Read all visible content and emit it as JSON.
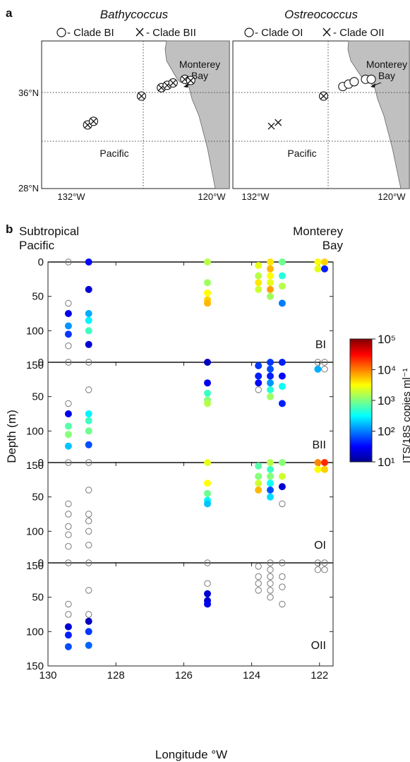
{
  "panel_a": {
    "label": "a",
    "grid_labels": {
      "lat_mid": "36°N",
      "lat_low": "28°N",
      "lon_west": "132°W",
      "lon_east": "120°W"
    },
    "maps": [
      {
        "title": "Bathycoccus",
        "legend": [
          {
            "symbol": "circle",
            "text": "- Clade BI"
          },
          {
            "symbol": "cross",
            "text": "- Clade BII"
          }
        ],
        "land_label_1": "Monterey",
        "land_label_2": "Bay",
        "ocean_label": "Pacific",
        "stations": [
          {
            "lon": -130.6,
            "lat": 33.3,
            "circle": true,
            "cross": true
          },
          {
            "lon": -130.1,
            "lat": 33.6,
            "circle": true,
            "cross": true
          },
          {
            "lon": -126.0,
            "lat": 35.7,
            "circle": true,
            "cross": true
          },
          {
            "lon": -124.3,
            "lat": 36.4,
            "circle": true,
            "cross": true
          },
          {
            "lon": -123.8,
            "lat": 36.6,
            "circle": true,
            "cross": true
          },
          {
            "lon": -123.3,
            "lat": 36.8,
            "circle": true,
            "cross": true
          },
          {
            "lon": -122.3,
            "lat": 37.1,
            "circle": true,
            "cross": true
          },
          {
            "lon": -121.8,
            "lat": 37.0,
            "circle": true,
            "cross": true
          }
        ]
      },
      {
        "title": "Ostreococcus",
        "legend": [
          {
            "symbol": "circle",
            "text": "- Clade OI"
          },
          {
            "symbol": "cross",
            "text": "- Clade OII"
          }
        ],
        "land_label_1": "Monterey",
        "land_label_2": "Bay",
        "ocean_label": "Pacific",
        "stations": [
          {
            "lon": -130.6,
            "lat": 33.2,
            "circle": false,
            "cross": true
          },
          {
            "lon": -130.0,
            "lat": 33.5,
            "circle": false,
            "cross": true
          },
          {
            "lon": -126.0,
            "lat": 35.7,
            "circle": true,
            "cross": true
          },
          {
            "lon": -124.3,
            "lat": 36.5,
            "circle": true,
            "cross": false
          },
          {
            "lon": -123.8,
            "lat": 36.7,
            "circle": true,
            "cross": false
          },
          {
            "lon": -123.3,
            "lat": 36.9,
            "circle": true,
            "cross": false
          },
          {
            "lon": -122.3,
            "lat": 37.1,
            "circle": true,
            "cross": false
          },
          {
            "lon": -121.8,
            "lat": 37.1,
            "circle": true,
            "cross": false
          }
        ]
      }
    ]
  },
  "panel_b": {
    "label": "b",
    "left_heading_1": "Subtropical",
    "left_heading_2": "Pacific",
    "right_heading_1": "Monterey",
    "right_heading_2": "Bay",
    "colorbar_label": "ITS/18S copies ml⁻¹"
  },
  "chart_data": {
    "type": "scatter",
    "xlabel": "Longitude °W",
    "ylabel": "Depth (m)",
    "xlim": [
      130,
      121.6
    ],
    "ylim": [
      150,
      0
    ],
    "xticks": [
      130,
      128,
      126,
      124,
      122
    ],
    "yticks": [
      0,
      50,
      100,
      150
    ],
    "color_scale": {
      "type": "log10",
      "min_exp": 1,
      "max_exp": 5,
      "tick_labels": [
        "10⁵",
        "10⁴",
        "10³",
        "10²",
        "10¹"
      ]
    },
    "panels": [
      {
        "name": "BI",
        "points": [
          {
            "x": 129.4,
            "y": 0,
            "v": null
          },
          {
            "x": 129.4,
            "y": 60,
            "v": null
          },
          {
            "x": 129.4,
            "y": 75,
            "v": 1.2
          },
          {
            "x": 129.4,
            "y": 93,
            "v": 1.9
          },
          {
            "x": 129.4,
            "y": 105,
            "v": 1.5
          },
          {
            "x": 129.4,
            "y": 122,
            "v": null
          },
          {
            "x": 128.8,
            "y": 0,
            "v": 1.3
          },
          {
            "x": 128.8,
            "y": 40,
            "v": 1.1
          },
          {
            "x": 128.8,
            "y": 75,
            "v": 2.0
          },
          {
            "x": 128.8,
            "y": 85,
            "v": 2.3
          },
          {
            "x": 128.8,
            "y": 100,
            "v": 2.6
          },
          {
            "x": 128.8,
            "y": 120,
            "v": 1.1
          },
          {
            "x": 125.3,
            "y": 0,
            "v": 3.1
          },
          {
            "x": 125.3,
            "y": 30,
            "v": 3.0
          },
          {
            "x": 125.3,
            "y": 45,
            "v": 3.4
          },
          {
            "x": 125.3,
            "y": 55,
            "v": 3.6
          },
          {
            "x": 125.3,
            "y": 60,
            "v": 3.7
          },
          {
            "x": 123.8,
            "y": 5,
            "v": 3.3
          },
          {
            "x": 123.8,
            "y": 20,
            "v": 3.1
          },
          {
            "x": 123.8,
            "y": 30,
            "v": 3.5
          },
          {
            "x": 123.8,
            "y": 40,
            "v": 3.2
          },
          {
            "x": 123.45,
            "y": 0,
            "v": 3.5
          },
          {
            "x": 123.45,
            "y": 10,
            "v": 3.7
          },
          {
            "x": 123.45,
            "y": 20,
            "v": 3.4
          },
          {
            "x": 123.45,
            "y": 30,
            "v": 3.3
          },
          {
            "x": 123.45,
            "y": 40,
            "v": 3.8
          },
          {
            "x": 123.45,
            "y": 50,
            "v": 3.0
          },
          {
            "x": 123.1,
            "y": 0,
            "v": 2.8
          },
          {
            "x": 123.1,
            "y": 20,
            "v": 2.5
          },
          {
            "x": 123.1,
            "y": 35,
            "v": 3.1
          },
          {
            "x": 123.1,
            "y": 60,
            "v": 1.8
          },
          {
            "x": 122.05,
            "y": 0,
            "v": 3.4
          },
          {
            "x": 122.05,
            "y": 10,
            "v": 3.3
          },
          {
            "x": 121.85,
            "y": 0,
            "v": 3.6
          },
          {
            "x": 121.85,
            "y": 10,
            "v": 1.4
          }
        ]
      },
      {
        "name": "BII",
        "points": [
          {
            "x": 129.4,
            "y": 0,
            "v": null
          },
          {
            "x": 129.4,
            "y": 60,
            "v": null
          },
          {
            "x": 129.4,
            "y": 75,
            "v": 1.2
          },
          {
            "x": 129.4,
            "y": 93,
            "v": 2.7
          },
          {
            "x": 129.4,
            "y": 105,
            "v": 2.9
          },
          {
            "x": 129.4,
            "y": 122,
            "v": 2.1
          },
          {
            "x": 128.8,
            "y": 0,
            "v": null
          },
          {
            "x": 128.8,
            "y": 40,
            "v": null
          },
          {
            "x": 128.8,
            "y": 75,
            "v": 2.3
          },
          {
            "x": 128.8,
            "y": 85,
            "v": 2.6
          },
          {
            "x": 128.8,
            "y": 100,
            "v": 2.8
          },
          {
            "x": 128.8,
            "y": 120,
            "v": 1.6
          },
          {
            "x": 125.3,
            "y": 0,
            "v": 1.0
          },
          {
            "x": 125.3,
            "y": 30,
            "v": 1.2
          },
          {
            "x": 125.3,
            "y": 45,
            "v": 2.6
          },
          {
            "x": 125.3,
            "y": 55,
            "v": 2.9
          },
          {
            "x": 125.3,
            "y": 60,
            "v": 3.1
          },
          {
            "x": 123.8,
            "y": 5,
            "v": 1.5
          },
          {
            "x": 123.8,
            "y": 20,
            "v": 1.4
          },
          {
            "x": 123.8,
            "y": 30,
            "v": 1.3
          },
          {
            "x": 123.8,
            "y": 40,
            "v": null
          },
          {
            "x": 123.45,
            "y": 0,
            "v": 1.5
          },
          {
            "x": 123.45,
            "y": 10,
            "v": 1.6
          },
          {
            "x": 123.45,
            "y": 20,
            "v": 1.4
          },
          {
            "x": 123.45,
            "y": 30,
            "v": 1.9
          },
          {
            "x": 123.45,
            "y": 40,
            "v": 2.5
          },
          {
            "x": 123.45,
            "y": 50,
            "v": 3.0
          },
          {
            "x": 123.1,
            "y": 0,
            "v": 1.4
          },
          {
            "x": 123.1,
            "y": 20,
            "v": 1.3
          },
          {
            "x": 123.1,
            "y": 35,
            "v": 2.4
          },
          {
            "x": 123.1,
            "y": 60,
            "v": 1.4
          },
          {
            "x": 122.05,
            "y": 0,
            "v": null
          },
          {
            "x": 122.05,
            "y": 10,
            "v": 2.0
          },
          {
            "x": 121.85,
            "y": 0,
            "v": null
          },
          {
            "x": 121.85,
            "y": 10,
            "v": null
          }
        ]
      },
      {
        "name": "OI",
        "points": [
          {
            "x": 129.4,
            "y": 0,
            "v": null
          },
          {
            "x": 129.4,
            "y": 60,
            "v": null
          },
          {
            "x": 129.4,
            "y": 75,
            "v": null
          },
          {
            "x": 129.4,
            "y": 93,
            "v": null
          },
          {
            "x": 129.4,
            "y": 105,
            "v": null
          },
          {
            "x": 129.4,
            "y": 122,
            "v": null
          },
          {
            "x": 128.8,
            "y": 0,
            "v": null
          },
          {
            "x": 128.8,
            "y": 40,
            "v": null
          },
          {
            "x": 128.8,
            "y": 75,
            "v": null
          },
          {
            "x": 128.8,
            "y": 85,
            "v": null
          },
          {
            "x": 128.8,
            "y": 100,
            "v": null
          },
          {
            "x": 128.8,
            "y": 120,
            "v": null
          },
          {
            "x": 125.3,
            "y": 0,
            "v": 3.3
          },
          {
            "x": 125.3,
            "y": 30,
            "v": 3.4
          },
          {
            "x": 125.3,
            "y": 45,
            "v": 2.8
          },
          {
            "x": 125.3,
            "y": 55,
            "v": 2.3
          },
          {
            "x": 125.3,
            "y": 60,
            "v": 2.1
          },
          {
            "x": 123.8,
            "y": 5,
            "v": 2.7
          },
          {
            "x": 123.8,
            "y": 20,
            "v": 2.9
          },
          {
            "x": 123.8,
            "y": 30,
            "v": 3.2
          },
          {
            "x": 123.8,
            "y": 40,
            "v": 3.7
          },
          {
            "x": 123.45,
            "y": 0,
            "v": 3.1
          },
          {
            "x": 123.45,
            "y": 10,
            "v": 2.6
          },
          {
            "x": 123.45,
            "y": 20,
            "v": 2.9
          },
          {
            "x": 123.45,
            "y": 30,
            "v": 2.4
          },
          {
            "x": 123.45,
            "y": 40,
            "v": 1.6
          },
          {
            "x": 123.45,
            "y": 50,
            "v": 2.2
          },
          {
            "x": 123.1,
            "y": 0,
            "v": 2.9
          },
          {
            "x": 123.1,
            "y": 20,
            "v": 3.2
          },
          {
            "x": 123.1,
            "y": 35,
            "v": 1.1
          },
          {
            "x": 123.1,
            "y": 60,
            "v": null
          },
          {
            "x": 122.05,
            "y": 0,
            "v": 3.9
          },
          {
            "x": 122.05,
            "y": 10,
            "v": 3.4
          },
          {
            "x": 121.85,
            "y": 0,
            "v": 4.3
          },
          {
            "x": 121.85,
            "y": 10,
            "v": 3.6
          }
        ]
      },
      {
        "name": "OII",
        "points": [
          {
            "x": 129.4,
            "y": 0,
            "v": null
          },
          {
            "x": 129.4,
            "y": 60,
            "v": null
          },
          {
            "x": 129.4,
            "y": 75,
            "v": null
          },
          {
            "x": 129.4,
            "y": 93,
            "v": 1.1
          },
          {
            "x": 129.4,
            "y": 105,
            "v": 1.4
          },
          {
            "x": 129.4,
            "y": 122,
            "v": 1.6
          },
          {
            "x": 128.8,
            "y": 0,
            "v": null
          },
          {
            "x": 128.8,
            "y": 40,
            "v": null
          },
          {
            "x": 128.8,
            "y": 75,
            "v": null
          },
          {
            "x": 128.8,
            "y": 85,
            "v": 1.0
          },
          {
            "x": 128.8,
            "y": 100,
            "v": 1.5
          },
          {
            "x": 128.8,
            "y": 120,
            "v": 1.7
          },
          {
            "x": 125.3,
            "y": 0,
            "v": null
          },
          {
            "x": 125.3,
            "y": 30,
            "v": null
          },
          {
            "x": 125.3,
            "y": 45,
            "v": 1.1
          },
          {
            "x": 125.3,
            "y": 55,
            "v": 1.1
          },
          {
            "x": 125.3,
            "y": 60,
            "v": 1.2
          },
          {
            "x": 123.8,
            "y": 5,
            "v": null
          },
          {
            "x": 123.8,
            "y": 20,
            "v": null
          },
          {
            "x": 123.8,
            "y": 30,
            "v": null
          },
          {
            "x": 123.8,
            "y": 40,
            "v": null
          },
          {
            "x": 123.45,
            "y": 0,
            "v": null
          },
          {
            "x": 123.45,
            "y": 10,
            "v": null
          },
          {
            "x": 123.45,
            "y": 20,
            "v": null
          },
          {
            "x": 123.45,
            "y": 30,
            "v": null
          },
          {
            "x": 123.45,
            "y": 40,
            "v": null
          },
          {
            "x": 123.45,
            "y": 50,
            "v": null
          },
          {
            "x": 123.1,
            "y": 0,
            "v": null
          },
          {
            "x": 123.1,
            "y": 20,
            "v": null
          },
          {
            "x": 123.1,
            "y": 35,
            "v": null
          },
          {
            "x": 123.1,
            "y": 60,
            "v": null
          },
          {
            "x": 122.05,
            "y": 0,
            "v": null
          },
          {
            "x": 122.05,
            "y": 10,
            "v": null
          },
          {
            "x": 121.85,
            "y": 0,
            "v": null
          },
          {
            "x": 121.85,
            "y": 10,
            "v": null
          }
        ]
      }
    ]
  }
}
